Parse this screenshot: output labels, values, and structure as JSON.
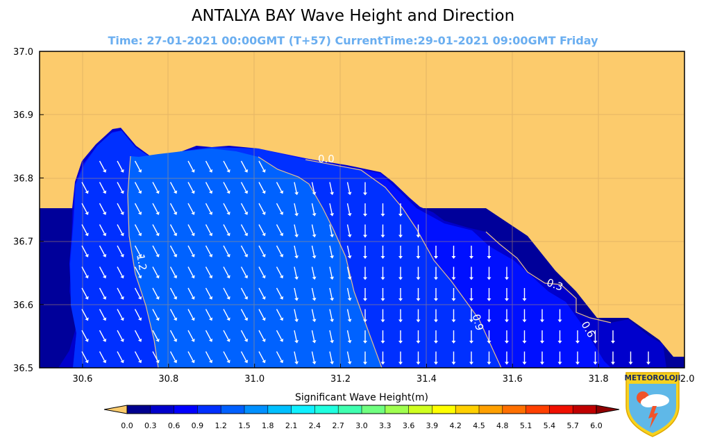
{
  "title": "ANTALYA BAY Wave Height and Direction",
  "subtitle": "Time: 27-01-2021 00:00GMT (T+57)  CurrentTime:29-01-2021 09:00GMT Friday",
  "colors": {
    "land": "#fccb6c",
    "accent_subtitle": "#6aaef0",
    "contour_line": "#e8c08a"
  },
  "map": {
    "lon_range": [
      30.5,
      32.0
    ],
    "lat_range": [
      36.5,
      37.0
    ],
    "x_ticks": [
      "30.6",
      "30.8",
      "31.0",
      "31.2",
      "31.4",
      "31.6",
      "31.8",
      "32.0"
    ],
    "y_ticks": [
      "37.0",
      "36.9",
      "36.8",
      "36.7",
      "36.6",
      "36.5"
    ],
    "contour_labels": [
      "0.0",
      "1.2",
      "0.9",
      "0.3",
      "0.6"
    ],
    "arrow_direction": "south / south-east",
    "grid": true
  },
  "colorbar": {
    "label": "Significant Wave Height(m)",
    "ticks": [
      "0.0",
      "0.3",
      "0.6",
      "0.9",
      "1.2",
      "1.5",
      "1.8",
      "2.1",
      "2.4",
      "2.7",
      "3.0",
      "3.3",
      "3.6",
      "3.9",
      "4.2",
      "4.5",
      "4.8",
      "5.1",
      "5.4",
      "5.7",
      "6.0"
    ],
    "colors": [
      "#00008f",
      "#0000cc",
      "#0000ff",
      "#0030ff",
      "#0060ff",
      "#0090ff",
      "#00c0ff",
      "#10f0ff",
      "#20ffe0",
      "#40ffb0",
      "#70ff80",
      "#a0ff50",
      "#d0ff20",
      "#ffff00",
      "#ffd000",
      "#ffa000",
      "#ff7000",
      "#ff4000",
      "#f01000",
      "#c00000"
    ],
    "under_color": "#fccb6c",
    "over_color": "#8f0000"
  },
  "logo": {
    "text": "METEOROLOJI"
  }
}
